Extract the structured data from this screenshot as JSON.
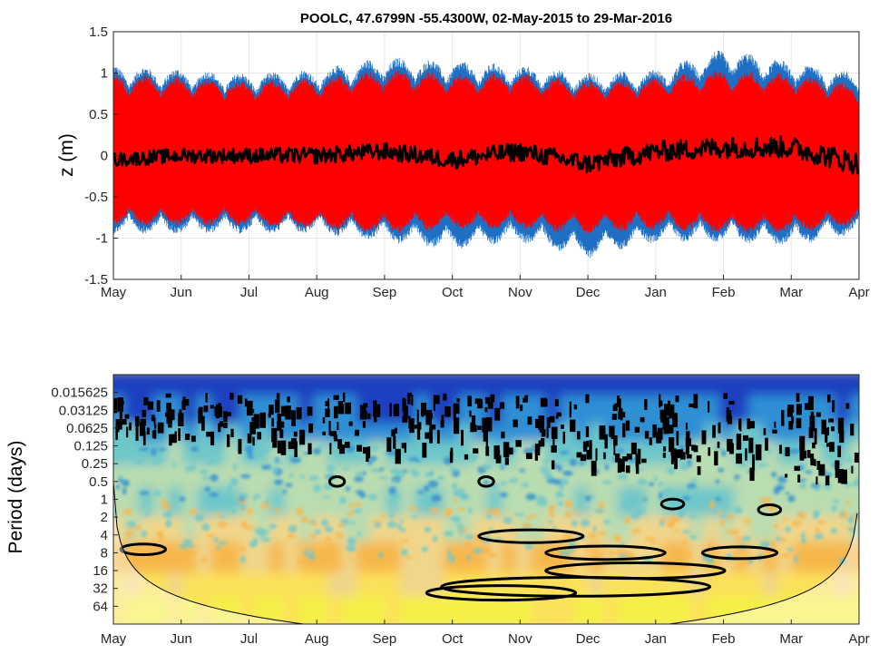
{
  "chart_data": [
    {
      "type": "line",
      "title": "POOLC, 47.6799N -55.4300W, 02-May-2015 to 29-Mar-2016",
      "xlabel": "",
      "ylabel": "z (m)",
      "x_ticks": [
        "May",
        "Jun",
        "Jul",
        "Aug",
        "Sep",
        "Oct",
        "Nov",
        "Dec",
        "Jan",
        "Feb",
        "Mar",
        "Apr"
      ],
      "y_ticks": [
        "1.5",
        "1",
        "0.5",
        "0",
        "-0.5",
        "-1",
        "-1.5"
      ],
      "ylim": [
        -1.5,
        1.5
      ],
      "grid": true,
      "series": [
        {
          "color": "#1f6fc4",
          "description_values": "observed water level, approx. envelope by month (min, max)",
          "envelope": [
            [
              -0.95,
              1.1
            ],
            [
              -0.95,
              1.05
            ],
            [
              -0.95,
              1.0
            ],
            [
              -0.95,
              1.05
            ],
            [
              -1.05,
              1.2
            ],
            [
              -1.15,
              1.15
            ],
            [
              -1.05,
              1.1
            ],
            [
              -1.25,
              1.0
            ],
            [
              -1.05,
              1.05
            ],
            [
              -1.05,
              1.3
            ],
            [
              -1.1,
              1.15
            ],
            [
              -0.95,
              1.0
            ]
          ]
        },
        {
          "color": "#ff0000",
          "description_values": "tidal prediction, approx. envelope by month (min, max)",
          "envelope": [
            [
              -0.85,
              1.0
            ],
            [
              -0.85,
              0.95
            ],
            [
              -0.85,
              0.9
            ],
            [
              -0.9,
              0.95
            ],
            [
              -0.95,
              1.05
            ],
            [
              -0.9,
              1.0
            ],
            [
              -0.9,
              1.0
            ],
            [
              -0.95,
              0.9
            ],
            [
              -0.9,
              0.95
            ],
            [
              -0.95,
              1.05
            ],
            [
              -0.95,
              1.0
            ],
            [
              -0.85,
              0.85
            ]
          ]
        },
        {
          "color": "#000000",
          "description_values": "residual, approx. monthly mean",
          "values": [
            -0.05,
            0.0,
            0.0,
            0.0,
            0.05,
            -0.05,
            0.05,
            -0.1,
            0.05,
            0.1,
            0.1,
            -0.1
          ]
        }
      ]
    },
    {
      "type": "heatmap",
      "title": "",
      "xlabel": "",
      "ylabel": "Period (days)",
      "x_ticks": [
        "May",
        "Jun",
        "Jul",
        "Aug",
        "Sep",
        "Oct",
        "Nov",
        "Dec",
        "Jan",
        "Feb",
        "Mar",
        "Apr"
      ],
      "y_ticks": [
        "0.015625",
        "0.03125",
        "0.0625",
        "0.125",
        "0.25",
        "0.5",
        "1",
        "2",
        "4",
        "8",
        "16",
        "32",
        "64"
      ],
      "y_scale": "log2",
      "ylim": [
        0.0078125,
        128
      ],
      "colormap": [
        "#1c3fbf",
        "#2f8fd4",
        "#6ec7c9",
        "#b9dcb0",
        "#f0d68a",
        "#f7b74c",
        "#fbe15a",
        "#f5f046"
      ],
      "cone_of_influence": true
    }
  ]
}
